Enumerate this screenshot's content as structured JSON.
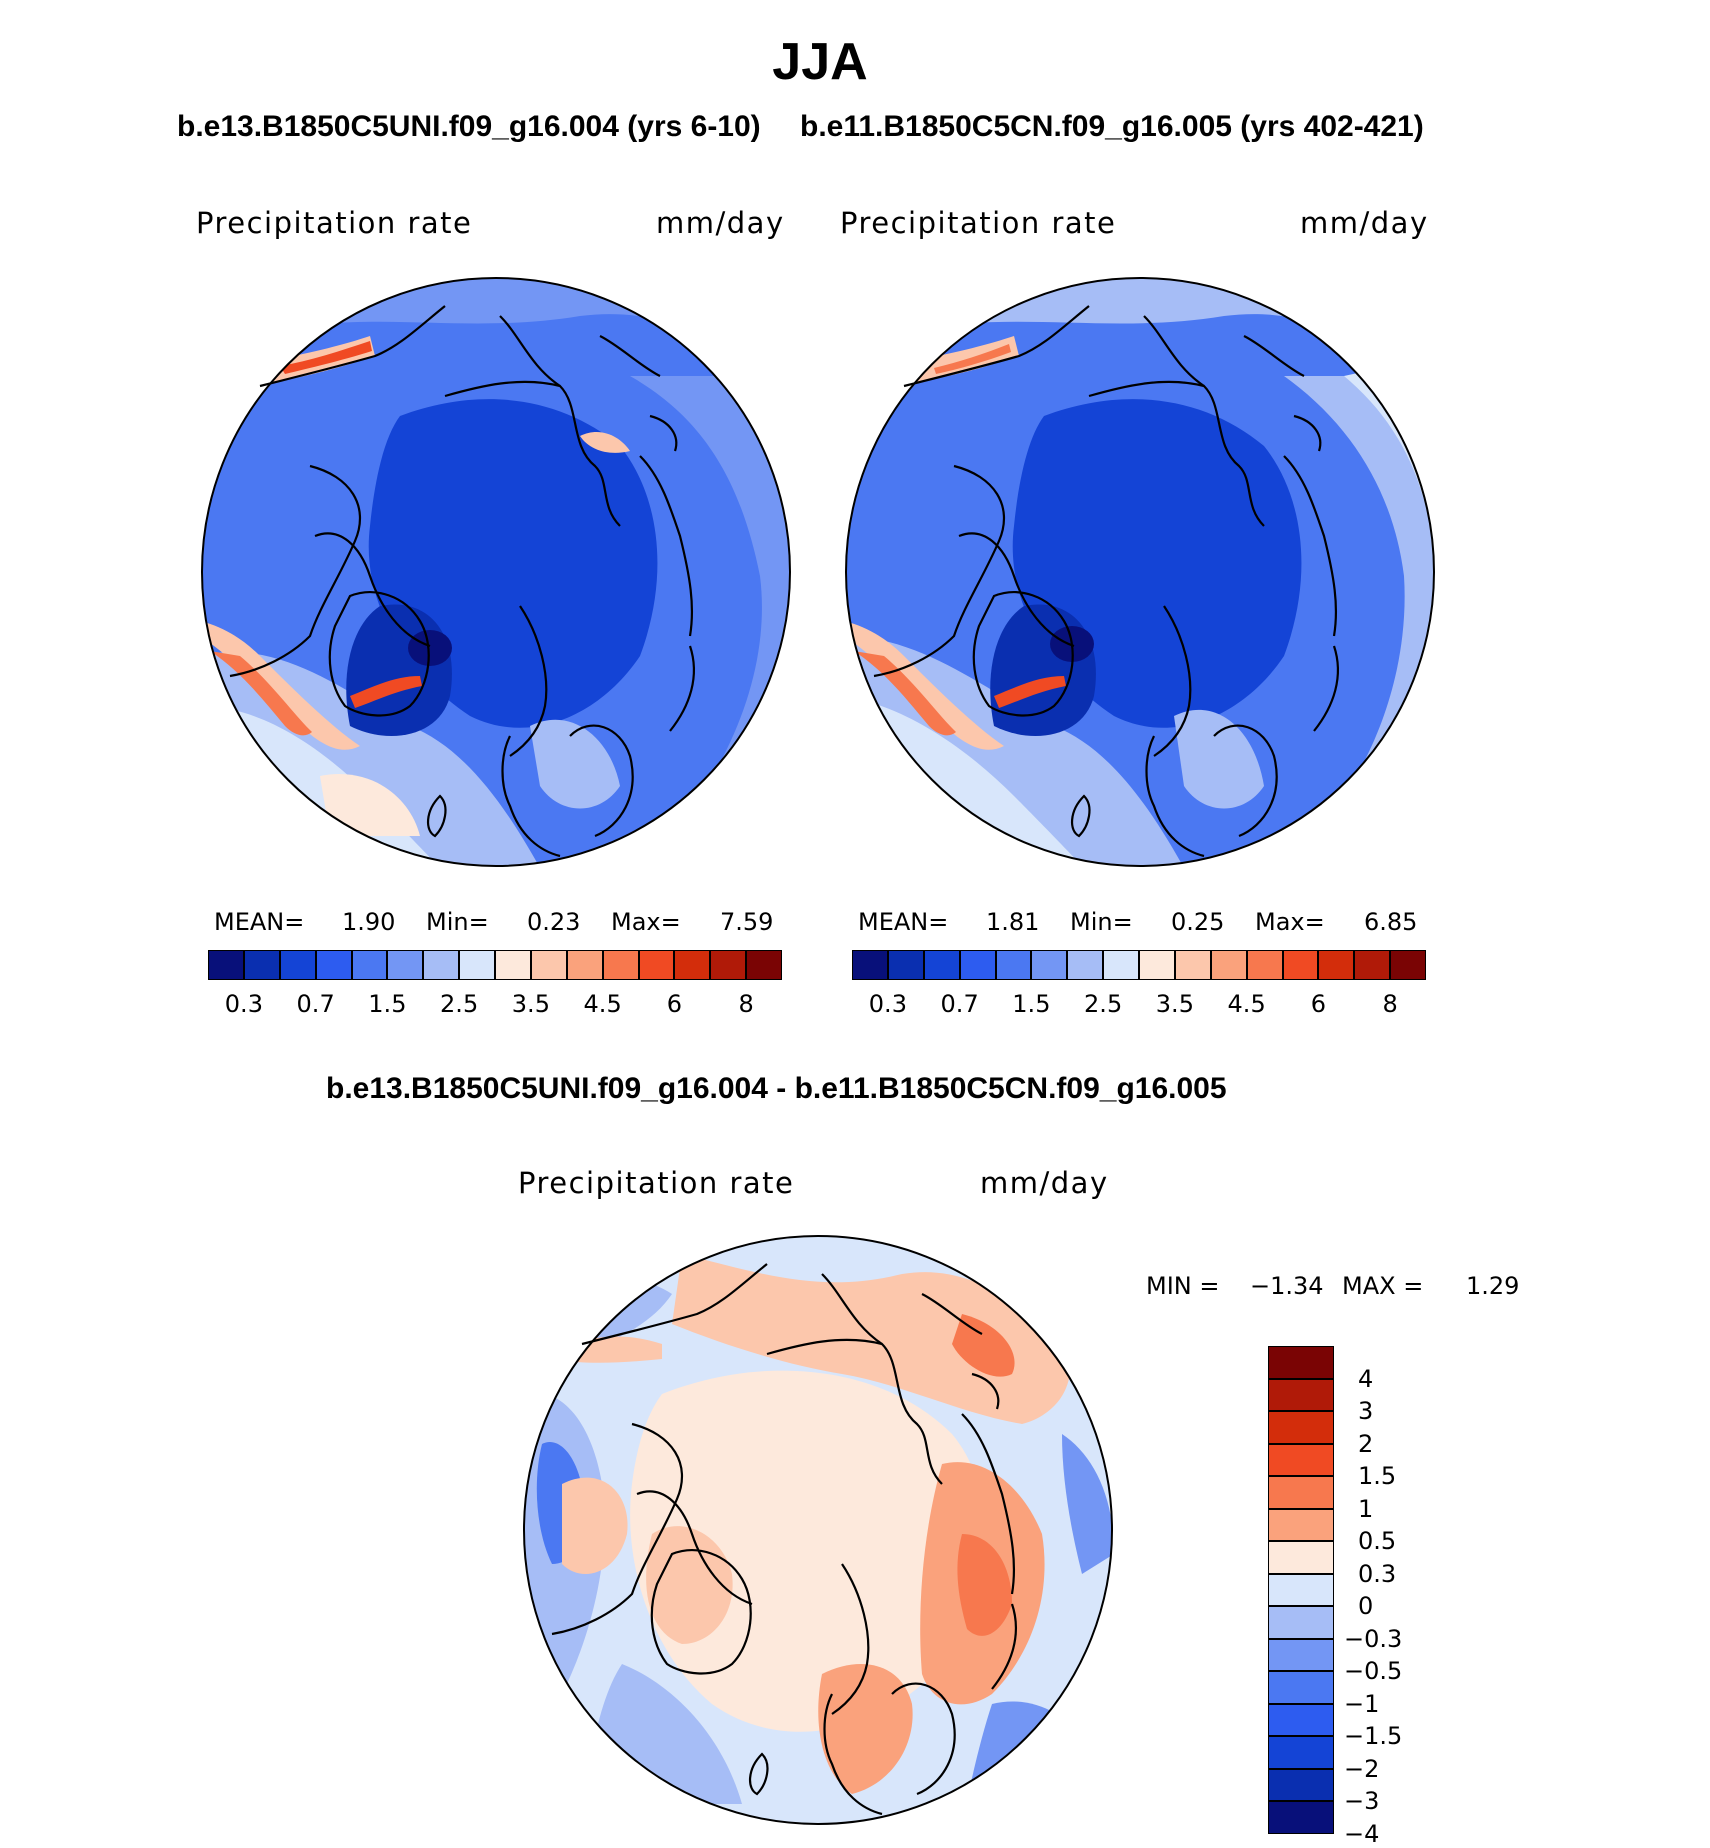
{
  "title": "JJA",
  "panels": [
    {
      "case_title": "b.e13.B1850C5UNI.f09_g16.004 (yrs 6-10)",
      "field_label": "Precipitation  rate",
      "units": "mm/day",
      "stats": {
        "mean_label": "MEAN=",
        "mean": "1.90",
        "min_label": "Min=",
        "min": "0.23",
        "max_label": "Max=",
        "max": "7.59"
      }
    },
    {
      "case_title": "b.e11.B1850C5CN.f09_g16.005 (yrs 402-421)",
      "field_label": "Precipitation  rate",
      "units": "mm/day",
      "stats": {
        "mean_label": "MEAN=",
        "mean": "1.81",
        "min_label": "Min=",
        "min": "0.25",
        "max_label": "Max=",
        "max": "6.85"
      }
    }
  ],
  "main_colorbar": {
    "colors": [
      "#08107a",
      "#0a2fb0",
      "#1444d6",
      "#2d5cf0",
      "#4b78f2",
      "#7396f4",
      "#a6bdf6",
      "#d8e6fb",
      "#fde9dc",
      "#fcc7ac",
      "#faa27c",
      "#f7784e",
      "#f04a23",
      "#d32d0b",
      "#b01a08",
      "#7a0404"
    ],
    "ticks": [
      "0.3",
      "0.7",
      "1.5",
      "2.5",
      "3.5",
      "4.5",
      "6",
      "8"
    ]
  },
  "diff": {
    "title": "b.e13.B1850C5UNI.f09_g16.004 - b.e11.B1850C5CN.f09_g16.005",
    "field_label": "Precipitation  rate",
    "units": "mm/day",
    "min_label": "MIN  =",
    "min": "−1.34",
    "max_label": "MAX  =",
    "max": "1.29",
    "colorbar": {
      "colors": [
        "#7a0404",
        "#b01a08",
        "#d32d0b",
        "#f04a23",
        "#f7784e",
        "#faa27c",
        "#fde9dc",
        "#d8e6fb",
        "#a6bdf6",
        "#7396f4",
        "#4b78f2",
        "#2d5cf0",
        "#1444d6",
        "#0a2fb0",
        "#08107a"
      ],
      "ticks": [
        "4",
        "3",
        "2",
        "1.5",
        "1",
        "0.5",
        "0.3",
        "0",
        "−0.3",
        "−0.5",
        "−1",
        "−1.5",
        "−2",
        "−3",
        "−4"
      ]
    }
  },
  "map_colors": {
    "deep": "#0a2fb0",
    "mid": "#2d5cf0",
    "light": "#7396f4",
    "pale": "#a6bdf6",
    "paler": "#d8e6fb",
    "warm": "#fcc7ac",
    "warmer": "#f7784e",
    "hot": "#d32d0b",
    "cream": "#fde9dc"
  }
}
